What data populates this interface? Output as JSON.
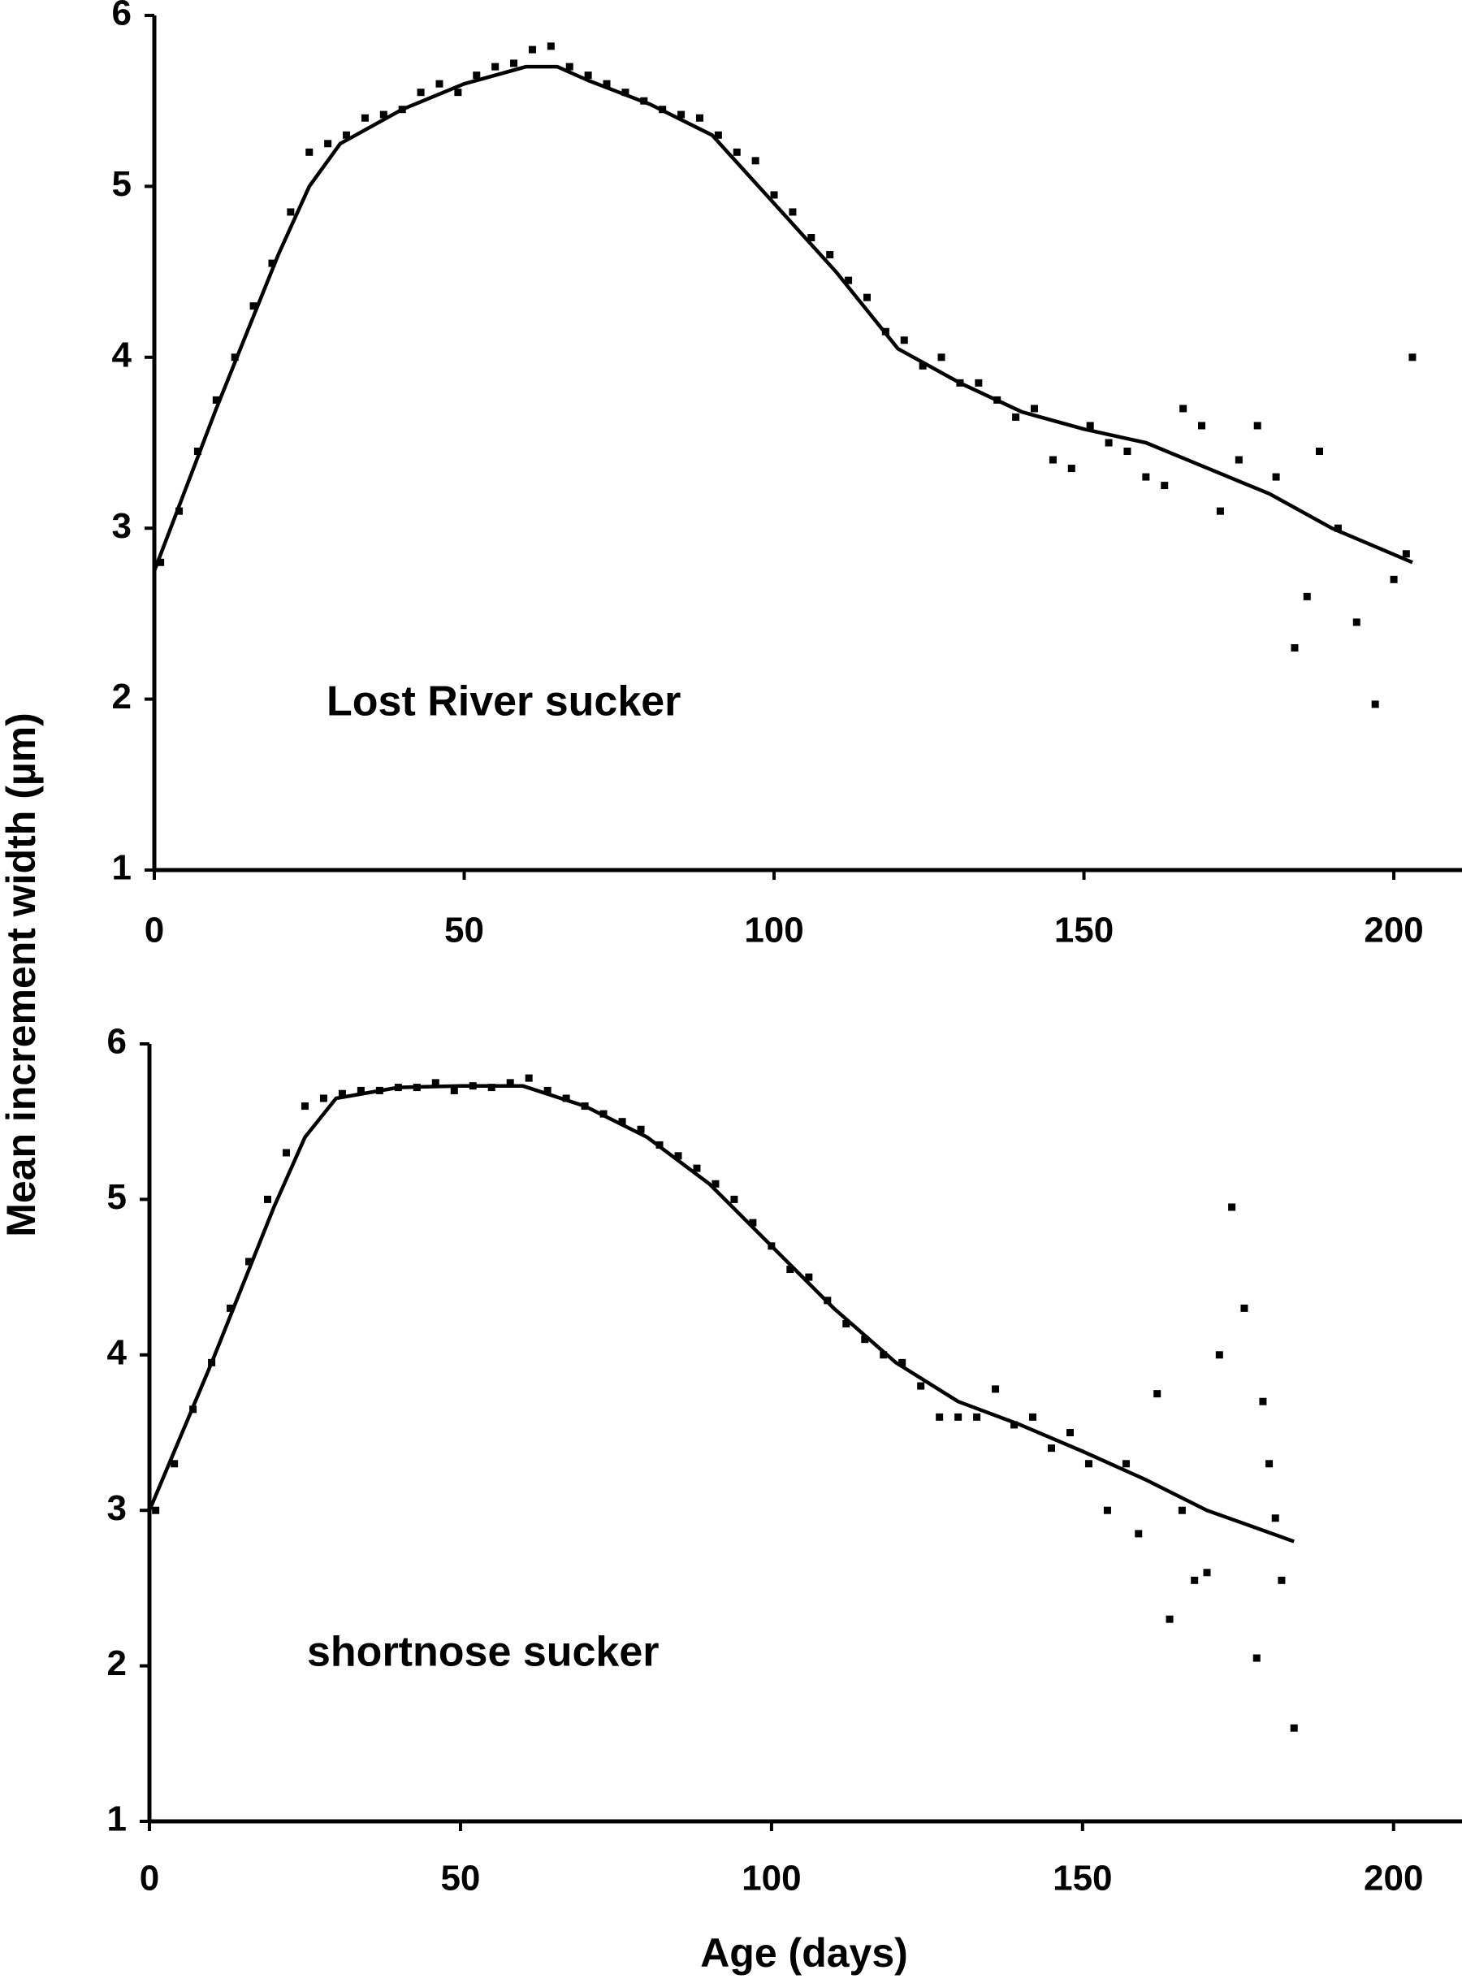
{
  "chart_data": [
    {
      "type": "scatter",
      "annotation": "Lost River sucker",
      "ylabel": "Mean increment width (µm)",
      "xlim": [
        0,
        211
      ],
      "ylim": [
        1,
        6
      ],
      "xticks": [
        0,
        50,
        100,
        150,
        200
      ],
      "yticks": [
        1,
        2,
        3,
        4,
        5,
        6
      ],
      "color": "#000000",
      "series": [
        {
          "type": "scatter",
          "x": [
            1,
            4,
            7,
            10,
            13,
            16,
            19,
            22,
            25,
            28,
            31,
            34,
            37,
            40,
            43,
            46,
            49,
            52,
            55,
            58,
            61,
            64,
            67,
            70,
            73,
            76,
            79,
            82,
            85,
            88,
            91,
            94,
            97,
            100,
            103,
            106,
            109,
            112,
            115,
            118,
            121,
            124,
            127,
            130,
            133,
            136,
            139,
            142,
            145,
            148,
            151,
            154,
            157,
            160,
            163,
            166,
            169,
            172,
            175,
            178,
            181,
            184,
            186,
            188,
            191,
            194,
            197,
            200,
            202,
            203
          ],
          "values": [
            2.8,
            3.1,
            3.45,
            3.75,
            4.0,
            4.3,
            4.55,
            4.85,
            5.2,
            5.25,
            5.3,
            5.4,
            5.42,
            5.45,
            5.55,
            5.6,
            5.55,
            5.65,
            5.7,
            5.72,
            5.8,
            5.82,
            5.7,
            5.65,
            5.6,
            5.55,
            5.5,
            5.45,
            5.42,
            5.4,
            5.3,
            5.2,
            5.15,
            4.95,
            4.85,
            4.7,
            4.6,
            4.45,
            4.35,
            4.15,
            4.1,
            3.95,
            4.0,
            3.85,
            3.85,
            3.75,
            3.65,
            3.7,
            3.4,
            3.35,
            3.6,
            3.5,
            3.45,
            3.3,
            3.25,
            3.7,
            3.6,
            3.1,
            3.4,
            3.6,
            3.3,
            2.3,
            2.6,
            3.45,
            3.0,
            2.45,
            1.97,
            2.7,
            2.85,
            4.0
          ]
        },
        {
          "type": "line",
          "x": [
            0,
            10,
            20,
            25,
            30,
            40,
            50,
            60,
            65,
            70,
            80,
            90,
            100,
            110,
            120,
            130,
            140,
            150,
            160,
            170,
            180,
            190,
            203
          ],
          "values": [
            2.75,
            3.7,
            4.6,
            5.0,
            5.25,
            5.45,
            5.6,
            5.7,
            5.7,
            5.62,
            5.48,
            5.3,
            4.9,
            4.5,
            4.05,
            3.85,
            3.68,
            3.58,
            3.5,
            3.35,
            3.2,
            3.0,
            2.8
          ]
        }
      ]
    },
    {
      "type": "scatter",
      "annotation": "shortnose sucker",
      "xlabel": "Age (days)",
      "xlim": [
        0,
        211
      ],
      "ylim": [
        1,
        6
      ],
      "xticks": [
        0,
        50,
        100,
        150,
        200
      ],
      "yticks": [
        1,
        2,
        3,
        4,
        5,
        6
      ],
      "color": "#000000",
      "series": [
        {
          "type": "scatter",
          "x": [
            1,
            4,
            7,
            10,
            13,
            16,
            19,
            22,
            25,
            28,
            31,
            34,
            37,
            40,
            43,
            46,
            49,
            52,
            55,
            58,
            61,
            64,
            67,
            70,
            73,
            76,
            79,
            82,
            85,
            88,
            91,
            94,
            97,
            100,
            103,
            106,
            109,
            112,
            115,
            118,
            121,
            124,
            127,
            130,
            133,
            136,
            139,
            142,
            145,
            148,
            151,
            154,
            157,
            159,
            162,
            164,
            166,
            168,
            170,
            172,
            174,
            176,
            178,
            179,
            180,
            181,
            182,
            184
          ],
          "values": [
            3.0,
            3.3,
            3.65,
            3.95,
            4.3,
            4.6,
            5.0,
            5.3,
            5.6,
            5.65,
            5.68,
            5.7,
            5.7,
            5.72,
            5.72,
            5.75,
            5.7,
            5.73,
            5.72,
            5.75,
            5.78,
            5.7,
            5.65,
            5.6,
            5.55,
            5.5,
            5.45,
            5.35,
            5.28,
            5.2,
            5.1,
            5.0,
            4.85,
            4.7,
            4.55,
            4.5,
            4.35,
            4.2,
            4.1,
            4.0,
            3.95,
            3.8,
            3.6,
            3.6,
            3.6,
            3.78,
            3.55,
            3.6,
            3.4,
            3.5,
            3.3,
            3.0,
            3.3,
            2.85,
            3.75,
            2.3,
            3.0,
            2.55,
            2.6,
            4.0,
            4.95,
            4.3,
            2.05,
            3.7,
            3.3,
            2.95,
            2.55,
            1.6
          ]
        },
        {
          "type": "line",
          "x": [
            0,
            10,
            20,
            25,
            30,
            40,
            50,
            60,
            70,
            80,
            90,
            100,
            110,
            120,
            130,
            140,
            150,
            160,
            170,
            184
          ],
          "values": [
            3.0,
            3.95,
            4.95,
            5.4,
            5.65,
            5.72,
            5.73,
            5.73,
            5.6,
            5.4,
            5.1,
            4.7,
            4.3,
            3.95,
            3.7,
            3.55,
            3.38,
            3.2,
            3.0,
            2.8
          ]
        }
      ]
    }
  ]
}
